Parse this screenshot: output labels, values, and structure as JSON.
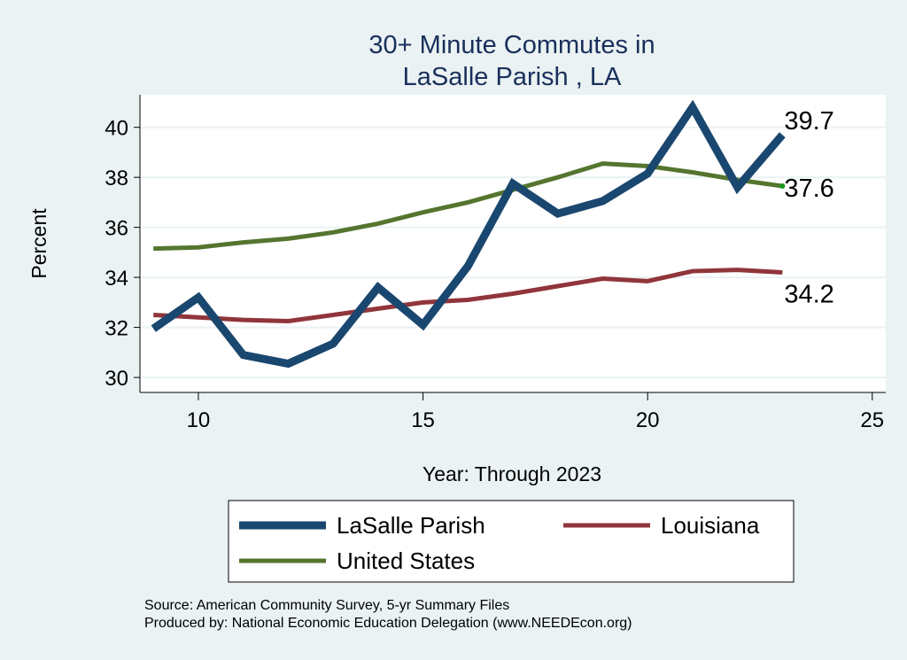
{
  "chart_data": {
    "type": "line",
    "title": [
      "30+ Minute Commutes in",
      "LaSalle Parish , LA"
    ],
    "xlabel": "Year: Through 2023",
    "ylabel": "Percent",
    "xlim": [
      8.7,
      25.3
    ],
    "ylim": [
      29.4,
      41.3
    ],
    "xticks": [
      10,
      15,
      20,
      25
    ],
    "yticks": [
      30,
      32,
      34,
      36,
      38,
      40
    ],
    "grid": true,
    "legend_placement": "bottom",
    "x": [
      9,
      10,
      11,
      12,
      13,
      14,
      15,
      16,
      17,
      18,
      19,
      20,
      21,
      22,
      23
    ],
    "series": [
      {
        "name": "LaSalle Parish",
        "color": "#1a476f",
        "values": [
          31.95,
          33.2,
          30.9,
          30.55,
          31.35,
          33.6,
          32.1,
          34.45,
          37.75,
          36.55,
          37.05,
          38.15,
          40.8,
          37.6,
          39.7
        ],
        "end_label": "39.7"
      },
      {
        "name": "Louisiana",
        "color": "#90353b",
        "values": [
          32.5,
          32.4,
          32.3,
          32.25,
          32.5,
          32.75,
          33.0,
          33.1,
          33.35,
          33.65,
          33.95,
          33.85,
          34.25,
          34.3,
          34.2
        ],
        "end_label": "34.2"
      },
      {
        "name": "United States",
        "color": "#55752f",
        "values": [
          35.15,
          35.2,
          35.4,
          35.55,
          35.8,
          36.15,
          36.6,
          37.0,
          37.5,
          38.0,
          38.55,
          38.45,
          38.2,
          37.9,
          37.65
        ],
        "end_label": "37.6"
      }
    ],
    "notes": [
      "Source: American Community Survey, 5-yr Summary Files",
      "Produced by: National Economic Education Delegation (www.NEEDEcon.org)"
    ]
  }
}
